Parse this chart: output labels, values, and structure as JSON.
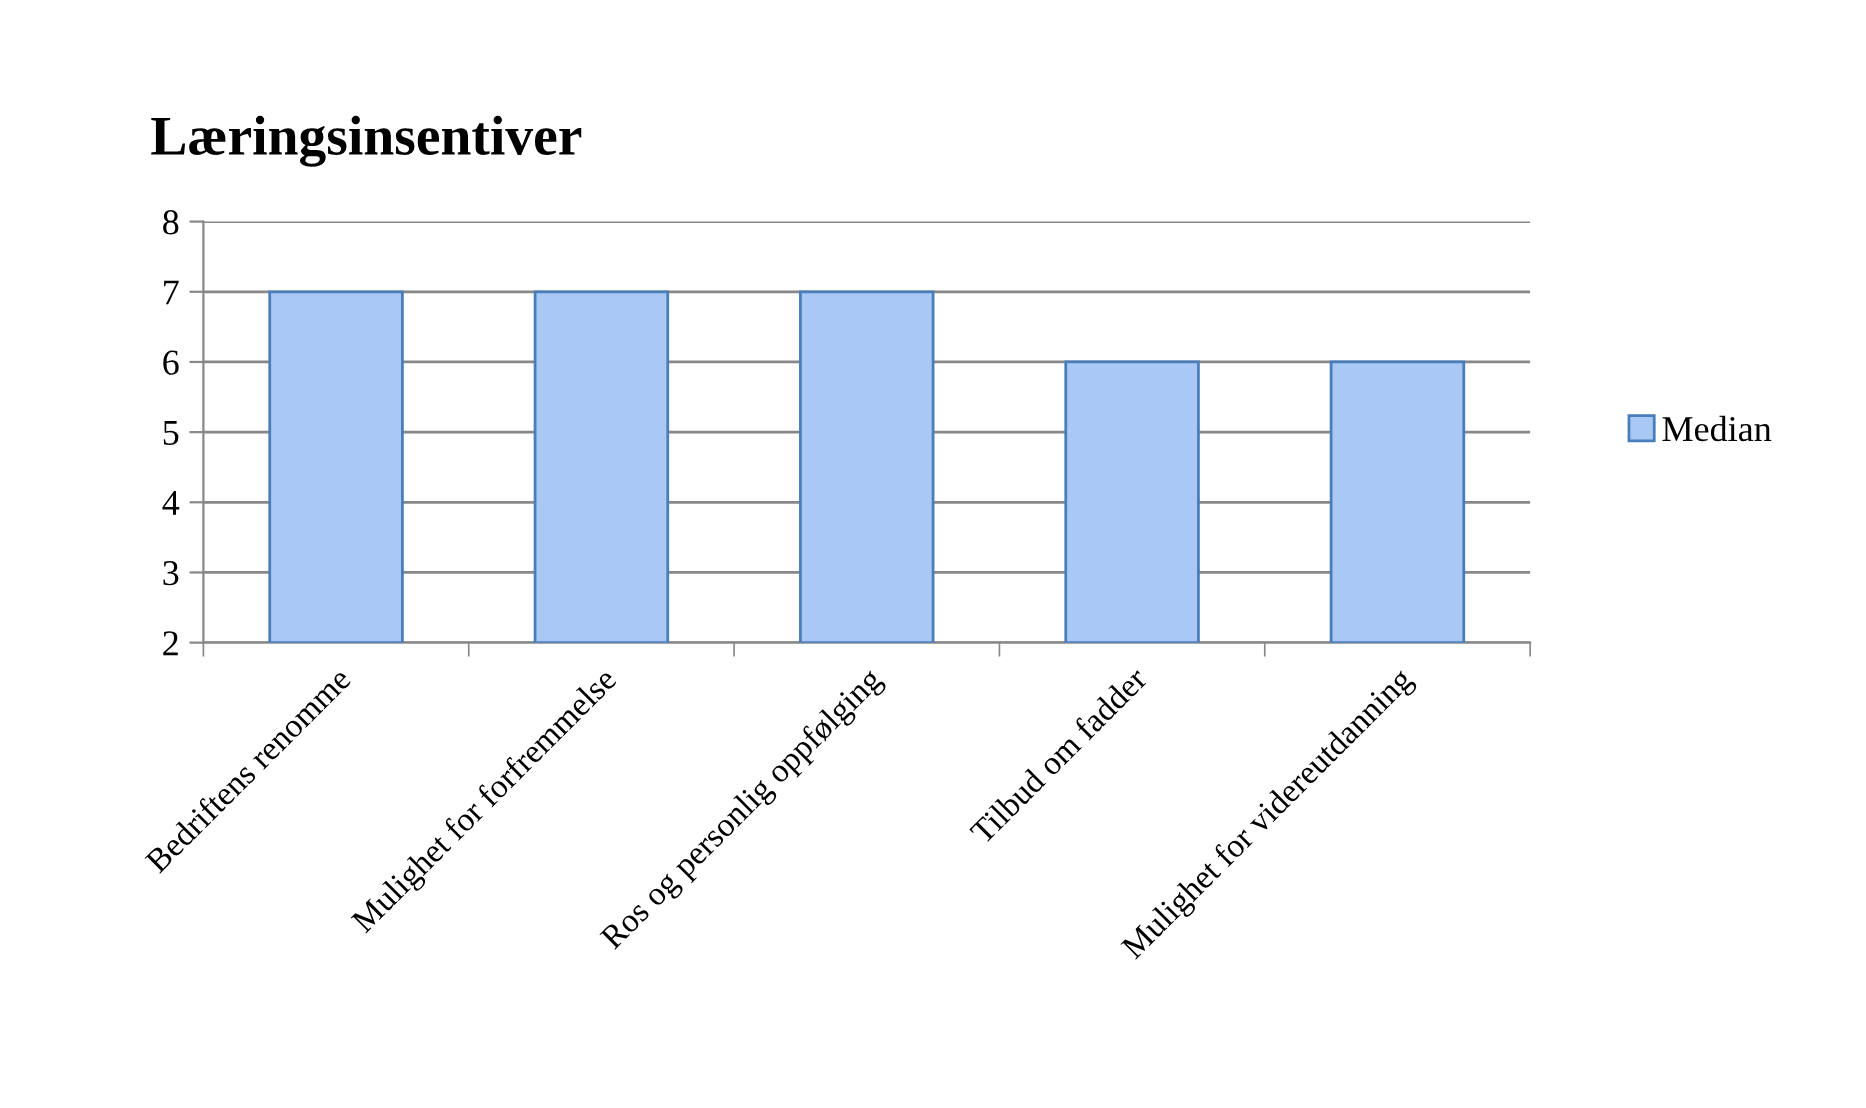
{
  "chart_data": {
    "type": "bar",
    "title": "Læringsinsentiver",
    "categories": [
      "Bedriftens renomme",
      "Mulighet for forfremmelse",
      "Ros og personlig oppfølging",
      "Tilbud om fadder",
      "Mulighet for videreutdanning"
    ],
    "series": [
      {
        "name": "Median",
        "color": "#a9c8f4",
        "values": [
          7,
          7,
          7,
          6,
          6
        ]
      }
    ],
    "ylim": [
      2,
      8
    ],
    "yticks": [
      2,
      3,
      4,
      5,
      6,
      7,
      8
    ],
    "grid": "y",
    "legend": "right"
  }
}
